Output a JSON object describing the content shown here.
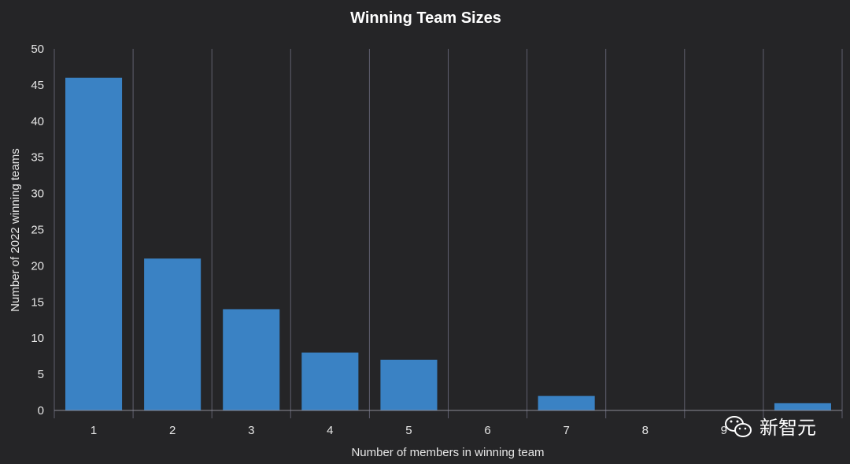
{
  "chart_data": {
    "type": "bar",
    "title": "Winning Team Sizes",
    "xlabel": "Number of members in winning team",
    "ylabel": "Number of 2022 winning teams",
    "categories": [
      "1",
      "2",
      "3",
      "4",
      "5",
      "6",
      "7",
      "8",
      "9",
      "10"
    ],
    "values": [
      46,
      21,
      14,
      8,
      7,
      0,
      2,
      0,
      0,
      1
    ],
    "ylim": [
      0,
      50
    ],
    "yticks": [
      "0",
      "5",
      "10",
      "15",
      "20",
      "25",
      "30",
      "35",
      "40",
      "45",
      "50"
    ],
    "grid": "vertical",
    "bar_color": "#3a82c4",
    "background_color": "#252527"
  },
  "watermark": {
    "text": "新智元",
    "icon": "wechat-icon"
  }
}
